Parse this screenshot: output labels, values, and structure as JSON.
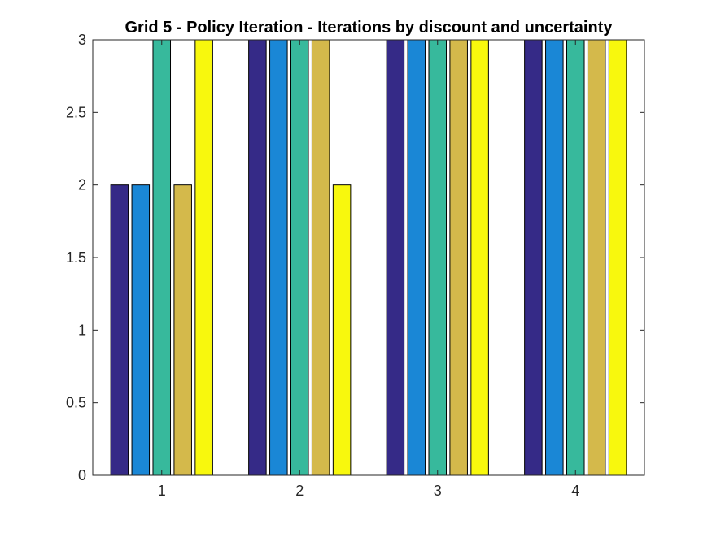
{
  "chart_data": {
    "type": "bar",
    "title": "Grid 5 - Policy Iteration - Iterations by discount and uncertainty",
    "xlabel": "",
    "ylabel": "",
    "categories": [
      "1",
      "2",
      "3",
      "4"
    ],
    "ylim": [
      0,
      3
    ],
    "yticks": [
      0,
      0.5,
      1,
      1.5,
      2,
      2.5,
      3
    ],
    "ytick_labels": [
      "0",
      "0.5",
      "1",
      "1.5",
      "2",
      "2.5",
      "3"
    ],
    "grid": false,
    "legend": "none",
    "series": [
      {
        "color": "#352a87",
        "values": [
          2,
          3,
          3,
          3
        ]
      },
      {
        "color": "#1a87d6",
        "values": [
          2,
          3,
          3,
          3
        ]
      },
      {
        "color": "#37b99c",
        "values": [
          3,
          3,
          3,
          3
        ]
      },
      {
        "color": "#d4b94b",
        "values": [
          2,
          3,
          3,
          3
        ]
      },
      {
        "color": "#f8f80d",
        "values": [
          3,
          2,
          3,
          3
        ]
      }
    ]
  }
}
